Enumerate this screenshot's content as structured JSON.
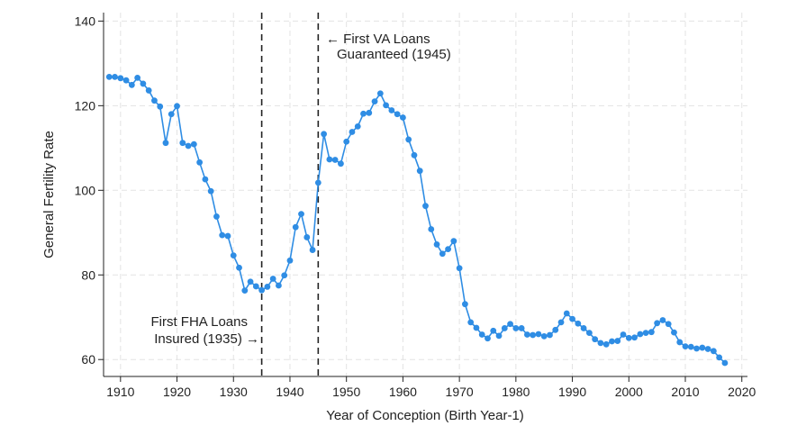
{
  "chart_data": {
    "type": "line",
    "xlabel": "Year of Conception (Birth Year-1)",
    "ylabel": "General Fertility Rate",
    "xlim": [
      1907,
      2021
    ],
    "ylim": [
      56,
      142
    ],
    "xticks": [
      1910,
      1920,
      1930,
      1940,
      1950,
      1960,
      1970,
      1980,
      1990,
      2000,
      2010,
      2020
    ],
    "yticks": [
      60,
      80,
      100,
      120,
      140
    ],
    "grid": true,
    "series": [
      {
        "color": "#2f8de4",
        "x": [
          1908,
          1909,
          1910,
          1911,
          1912,
          1913,
          1914,
          1915,
          1916,
          1917,
          1918,
          1919,
          1920,
          1921,
          1922,
          1923,
          1924,
          1925,
          1926,
          1927,
          1928,
          1929,
          1930,
          1931,
          1932,
          1933,
          1934,
          1935,
          1936,
          1937,
          1938,
          1939,
          1940,
          1941,
          1942,
          1943,
          1944,
          1945,
          1946,
          1947,
          1948,
          1949,
          1950,
          1951,
          1952,
          1953,
          1954,
          1955,
          1956,
          1957,
          1958,
          1959,
          1960,
          1961,
          1962,
          1963,
          1964,
          1965,
          1966,
          1967,
          1968,
          1969,
          1970,
          1971,
          1972,
          1973,
          1974,
          1975,
          1976,
          1977,
          1978,
          1979,
          1980,
          1981,
          1982,
          1983,
          1984,
          1985,
          1986,
          1987,
          1988,
          1989,
          1990,
          1991,
          1992,
          1993,
          1994,
          1995,
          1996,
          1997,
          1998,
          1999,
          2000,
          2001,
          2002,
          2003,
          2004,
          2005,
          2006,
          2007,
          2008,
          2009,
          2010,
          2011,
          2012,
          2013,
          2014,
          2015,
          2016,
          2017
        ],
        "y": [
          126.8,
          126.8,
          126.5,
          126.0,
          124.9,
          126.6,
          125.2,
          123.6,
          121.2,
          119.8,
          111.2,
          118.0,
          119.9,
          111.2,
          110.5,
          110.9,
          106.6,
          102.6,
          99.8,
          93.8,
          89.4,
          89.2,
          84.6,
          81.7,
          76.3,
          78.4,
          77.3,
          76.4,
          77.2,
          79.1,
          77.5,
          79.9,
          83.4,
          91.3,
          94.4,
          88.9,
          85.9,
          101.8,
          113.3,
          107.3,
          107.2,
          106.3,
          111.5,
          113.8,
          115.1,
          118.1,
          118.3,
          121.0,
          122.9,
          120.1,
          118.9,
          118.0,
          117.2,
          112.0,
          108.3,
          104.6,
          96.3,
          90.8,
          87.2,
          85.0,
          86.1,
          88.0,
          81.6,
          73.1,
          68.8,
          67.5,
          65.9,
          65.0,
          66.8,
          65.6,
          67.4,
          68.4,
          67.4,
          67.4,
          65.9,
          65.8,
          66.0,
          65.5,
          65.8,
          67.0,
          68.8,
          70.9,
          69.6,
          68.5,
          67.4,
          66.3,
          64.8,
          63.9,
          63.6,
          64.3,
          64.4,
          65.9,
          65.1,
          65.2,
          66.0,
          66.3,
          66.5,
          68.6,
          69.3,
          68.4,
          66.4,
          64.1,
          63.1,
          63.0,
          62.6,
          62.8,
          62.5,
          62.0,
          60.5,
          59.2
        ]
      }
    ],
    "vlines": [
      1935,
      1945
    ],
    "annotations": {
      "fha_line1": "First FHA Loans",
      "fha_line2": "Insured (1935) →",
      "va_line1": "← First VA Loans",
      "va_line2": "Guaranteed (1945)"
    }
  }
}
